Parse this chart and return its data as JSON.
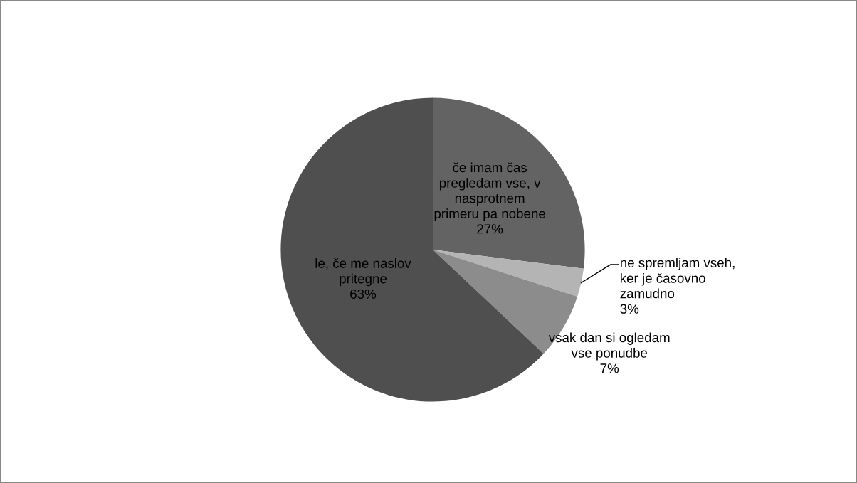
{
  "chart_data": {
    "type": "pie",
    "categories": [
      "če imam čas\npregledam vse, v\nnasprotnem\nprimeru pa nobene",
      "ne spremljam vseh,\nker je časovno\nzamudno",
      "vsak dan si ogledam\nvse ponudbe",
      "le, če me naslov\npritegne"
    ],
    "values": [
      27,
      3,
      7,
      63
    ],
    "colors": [
      "#636363",
      "#b4b4b4",
      "#8c8c8c",
      "#4f4f4f"
    ],
    "value_labels": [
      "27%",
      "3%",
      "7%",
      "63%"
    ]
  }
}
